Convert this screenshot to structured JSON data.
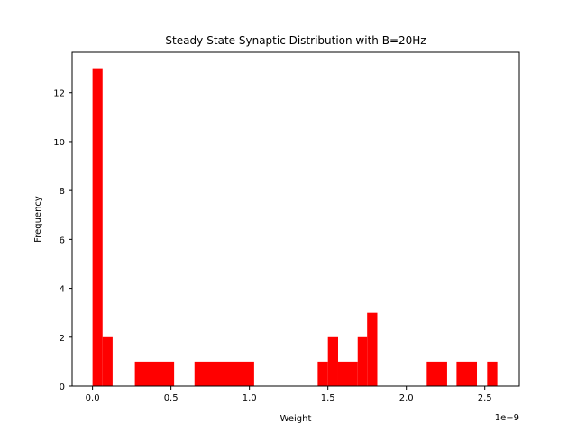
{
  "chart_data": {
    "type": "bar",
    "title": "Steady-State Synaptic Distribution with B=20Hz",
    "xlabel": "Weight",
    "ylabel": "Frequency",
    "x_offset_label": "1e−9",
    "bar_color": "#ff0000",
    "xlim": [
      -0.13,
      2.72
    ],
    "ylim": [
      0,
      13.65
    ],
    "grid": false,
    "xticks": [
      {
        "value": 0.0,
        "label": "0.0"
      },
      {
        "value": 0.5,
        "label": "0.5"
      },
      {
        "value": 1.0,
        "label": "1.0"
      },
      {
        "value": 1.5,
        "label": "1.5"
      },
      {
        "value": 2.0,
        "label": "2.0"
      },
      {
        "value": 2.5,
        "label": "2.5"
      }
    ],
    "yticks": [
      {
        "value": 0,
        "label": "0"
      },
      {
        "value": 2,
        "label": "2"
      },
      {
        "value": 4,
        "label": "4"
      },
      {
        "value": 6,
        "label": "6"
      },
      {
        "value": 8,
        "label": "8"
      },
      {
        "value": 10,
        "label": "10"
      },
      {
        "value": 12,
        "label": "12"
      }
    ],
    "bins": [
      {
        "x0": 0.0,
        "x1": 0.064,
        "count": 13
      },
      {
        "x0": 0.064,
        "x1": 0.128,
        "count": 2
      },
      {
        "x0": 0.27,
        "x1": 0.52,
        "count": 1
      },
      {
        "x0": 0.65,
        "x1": 1.03,
        "count": 1
      },
      {
        "x0": 1.435,
        "x1": 1.5,
        "count": 1
      },
      {
        "x0": 1.5,
        "x1": 1.565,
        "count": 2
      },
      {
        "x0": 1.565,
        "x1": 1.69,
        "count": 1
      },
      {
        "x0": 1.69,
        "x1": 1.75,
        "count": 2
      },
      {
        "x0": 1.75,
        "x1": 1.815,
        "count": 3
      },
      {
        "x0": 2.13,
        "x1": 2.26,
        "count": 1
      },
      {
        "x0": 2.32,
        "x1": 2.45,
        "count": 1
      },
      {
        "x0": 2.515,
        "x1": 2.58,
        "count": 1
      }
    ]
  }
}
